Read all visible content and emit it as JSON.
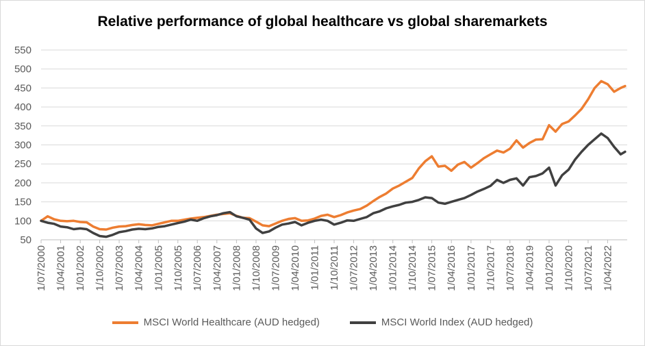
{
  "chart_data": {
    "type": "line",
    "title": "Relative performance of global healthcare vs global sharemarkets",
    "xlabel": "",
    "ylabel": "",
    "ylim": [
      50,
      550
    ],
    "y_ticks": [
      "50",
      "100",
      "150",
      "200",
      "250",
      "300",
      "350",
      "400",
      "450",
      "500",
      "550"
    ],
    "x_ticks": [
      "1/07/2000",
      "1/04/2001",
      "1/01/2002",
      "1/10/2002",
      "1/07/2003",
      "1/04/2004",
      "1/01/2005",
      "1/10/2005",
      "1/07/2006",
      "1/04/2007",
      "1/01/2008",
      "1/10/2008",
      "1/07/2009",
      "1/04/2010",
      "1/01/2011",
      "1/10/2011",
      "1/07/2012",
      "1/04/2013",
      "1/01/2014",
      "1/10/2014",
      "1/07/2015",
      "1/04/2016",
      "1/01/2017",
      "1/10/2017",
      "1/07/2018",
      "1/04/2019",
      "1/01/2020",
      "1/10/2020",
      "1/07/2021",
      "1/04/2022"
    ],
    "legend_position": "bottom",
    "grid": true,
    "series": [
      {
        "name": "MSCI World Healthcare (AUD hedged)",
        "color": "#ED7D31",
        "points": [
          [
            "2000-07-01",
            100
          ],
          [
            "2000-10-01",
            112
          ],
          [
            "2001-01-01",
            104
          ],
          [
            "2001-04-01",
            100
          ],
          [
            "2001-07-01",
            99
          ],
          [
            "2001-10-01",
            100
          ],
          [
            "2002-01-01",
            97
          ],
          [
            "2002-04-01",
            96
          ],
          [
            "2002-07-01",
            85
          ],
          [
            "2002-10-01",
            78
          ],
          [
            "2003-01-01",
            77
          ],
          [
            "2003-04-01",
            82
          ],
          [
            "2003-07-01",
            85
          ],
          [
            "2003-10-01",
            86
          ],
          [
            "2004-01-01",
            89
          ],
          [
            "2004-04-01",
            91
          ],
          [
            "2004-07-01",
            89
          ],
          [
            "2004-10-01",
            88
          ],
          [
            "2005-01-01",
            92
          ],
          [
            "2005-04-01",
            96
          ],
          [
            "2005-07-01",
            100
          ],
          [
            "2005-10-01",
            100
          ],
          [
            "2006-01-01",
            103
          ],
          [
            "2006-04-01",
            106
          ],
          [
            "2006-07-01",
            108
          ],
          [
            "2006-10-01",
            110
          ],
          [
            "2007-01-01",
            113
          ],
          [
            "2007-04-01",
            116
          ],
          [
            "2007-07-01",
            118
          ],
          [
            "2007-10-01",
            120
          ],
          [
            "2008-01-01",
            113
          ],
          [
            "2008-04-01",
            108
          ],
          [
            "2008-07-01",
            107
          ],
          [
            "2008-10-01",
            98
          ],
          [
            "2009-01-01",
            88
          ],
          [
            "2009-04-01",
            86
          ],
          [
            "2009-07-01",
            93
          ],
          [
            "2009-10-01",
            100
          ],
          [
            "2010-01-01",
            105
          ],
          [
            "2010-04-01",
            107
          ],
          [
            "2010-07-01",
            100
          ],
          [
            "2010-10-01",
            101
          ],
          [
            "2011-01-01",
            106
          ],
          [
            "2011-04-01",
            113
          ],
          [
            "2011-07-01",
            116
          ],
          [
            "2011-10-01",
            110
          ],
          [
            "2012-01-01",
            115
          ],
          [
            "2012-04-01",
            122
          ],
          [
            "2012-07-01",
            127
          ],
          [
            "2012-10-01",
            131
          ],
          [
            "2013-01-01",
            140
          ],
          [
            "2013-04-01",
            152
          ],
          [
            "2013-07-01",
            163
          ],
          [
            "2013-10-01",
            172
          ],
          [
            "2014-01-01",
            185
          ],
          [
            "2014-04-01",
            193
          ],
          [
            "2014-07-01",
            203
          ],
          [
            "2014-10-01",
            213
          ],
          [
            "2015-01-01",
            238
          ],
          [
            "2015-04-01",
            257
          ],
          [
            "2015-07-01",
            270
          ],
          [
            "2015-10-01",
            243
          ],
          [
            "2016-01-01",
            245
          ],
          [
            "2016-04-01",
            232
          ],
          [
            "2016-07-01",
            248
          ],
          [
            "2016-10-01",
            255
          ],
          [
            "2017-01-01",
            240
          ],
          [
            "2017-04-01",
            252
          ],
          [
            "2017-07-01",
            265
          ],
          [
            "2017-10-01",
            275
          ],
          [
            "2018-01-01",
            285
          ],
          [
            "2018-04-01",
            280
          ],
          [
            "2018-07-01",
            290
          ],
          [
            "2018-10-01",
            312
          ],
          [
            "2019-01-01",
            293
          ],
          [
            "2019-04-01",
            305
          ],
          [
            "2019-07-01",
            314
          ],
          [
            "2019-10-01",
            315
          ],
          [
            "2020-01-01",
            352
          ],
          [
            "2020-04-01",
            335
          ],
          [
            "2020-07-01",
            355
          ],
          [
            "2020-10-01",
            362
          ],
          [
            "2021-01-01",
            378
          ],
          [
            "2021-04-01",
            395
          ],
          [
            "2021-07-01",
            420
          ],
          [
            "2021-10-01",
            450
          ],
          [
            "2022-01-01",
            468
          ],
          [
            "2022-04-01",
            460
          ],
          [
            "2022-07-01",
            440
          ],
          [
            "2022-10-01",
            450
          ],
          [
            "2022-12-01",
            455
          ]
        ]
      },
      {
        "name": "MSCI World Index (AUD hedged)",
        "color": "#404040",
        "points": [
          [
            "2000-07-01",
            100
          ],
          [
            "2000-10-01",
            95
          ],
          [
            "2001-01-01",
            92
          ],
          [
            "2001-04-01",
            85
          ],
          [
            "2001-07-01",
            83
          ],
          [
            "2001-10-01",
            78
          ],
          [
            "2002-01-01",
            80
          ],
          [
            "2002-04-01",
            78
          ],
          [
            "2002-07-01",
            68
          ],
          [
            "2002-10-01",
            60
          ],
          [
            "2003-01-01",
            58
          ],
          [
            "2003-04-01",
            63
          ],
          [
            "2003-07-01",
            70
          ],
          [
            "2003-10-01",
            73
          ],
          [
            "2004-01-01",
            77
          ],
          [
            "2004-04-01",
            79
          ],
          [
            "2004-07-01",
            78
          ],
          [
            "2004-10-01",
            80
          ],
          [
            "2005-01-01",
            84
          ],
          [
            "2005-04-01",
            86
          ],
          [
            "2005-07-01",
            90
          ],
          [
            "2005-10-01",
            94
          ],
          [
            "2006-01-01",
            98
          ],
          [
            "2006-04-01",
            103
          ],
          [
            "2006-07-01",
            100
          ],
          [
            "2006-10-01",
            107
          ],
          [
            "2007-01-01",
            112
          ],
          [
            "2007-04-01",
            115
          ],
          [
            "2007-07-01",
            120
          ],
          [
            "2007-10-01",
            123
          ],
          [
            "2008-01-01",
            112
          ],
          [
            "2008-04-01",
            108
          ],
          [
            "2008-07-01",
            103
          ],
          [
            "2008-10-01",
            80
          ],
          [
            "2009-01-01",
            68
          ],
          [
            "2009-04-01",
            72
          ],
          [
            "2009-07-01",
            82
          ],
          [
            "2009-10-01",
            90
          ],
          [
            "2010-01-01",
            93
          ],
          [
            "2010-04-01",
            97
          ],
          [
            "2010-07-01",
            88
          ],
          [
            "2010-10-01",
            95
          ],
          [
            "2011-01-01",
            100
          ],
          [
            "2011-04-01",
            103
          ],
          [
            "2011-07-01",
            100
          ],
          [
            "2011-10-01",
            90
          ],
          [
            "2012-01-01",
            95
          ],
          [
            "2012-04-01",
            101
          ],
          [
            "2012-07-01",
            100
          ],
          [
            "2012-10-01",
            105
          ],
          [
            "2013-01-01",
            110
          ],
          [
            "2013-04-01",
            120
          ],
          [
            "2013-07-01",
            125
          ],
          [
            "2013-10-01",
            133
          ],
          [
            "2014-01-01",
            138
          ],
          [
            "2014-04-01",
            142
          ],
          [
            "2014-07-01",
            148
          ],
          [
            "2014-10-01",
            150
          ],
          [
            "2015-01-01",
            155
          ],
          [
            "2015-04-01",
            162
          ],
          [
            "2015-07-01",
            160
          ],
          [
            "2015-10-01",
            148
          ],
          [
            "2016-01-01",
            145
          ],
          [
            "2016-04-01",
            150
          ],
          [
            "2016-07-01",
            155
          ],
          [
            "2016-10-01",
            160
          ],
          [
            "2017-01-01",
            168
          ],
          [
            "2017-04-01",
            177
          ],
          [
            "2017-07-01",
            184
          ],
          [
            "2017-10-01",
            192
          ],
          [
            "2018-01-01",
            208
          ],
          [
            "2018-04-01",
            200
          ],
          [
            "2018-07-01",
            208
          ],
          [
            "2018-10-01",
            212
          ],
          [
            "2019-01-01",
            193
          ],
          [
            "2019-04-01",
            215
          ],
          [
            "2019-07-01",
            218
          ],
          [
            "2019-10-01",
            225
          ],
          [
            "2020-01-01",
            240
          ],
          [
            "2020-04-01",
            193
          ],
          [
            "2020-07-01",
            220
          ],
          [
            "2020-10-01",
            235
          ],
          [
            "2021-01-01",
            262
          ],
          [
            "2021-04-01",
            282
          ],
          [
            "2021-07-01",
            300
          ],
          [
            "2021-10-01",
            315
          ],
          [
            "2022-01-01",
            330
          ],
          [
            "2022-04-01",
            318
          ],
          [
            "2022-07-01",
            295
          ],
          [
            "2022-10-01",
            275
          ],
          [
            "2022-12-01",
            282
          ]
        ]
      }
    ]
  }
}
